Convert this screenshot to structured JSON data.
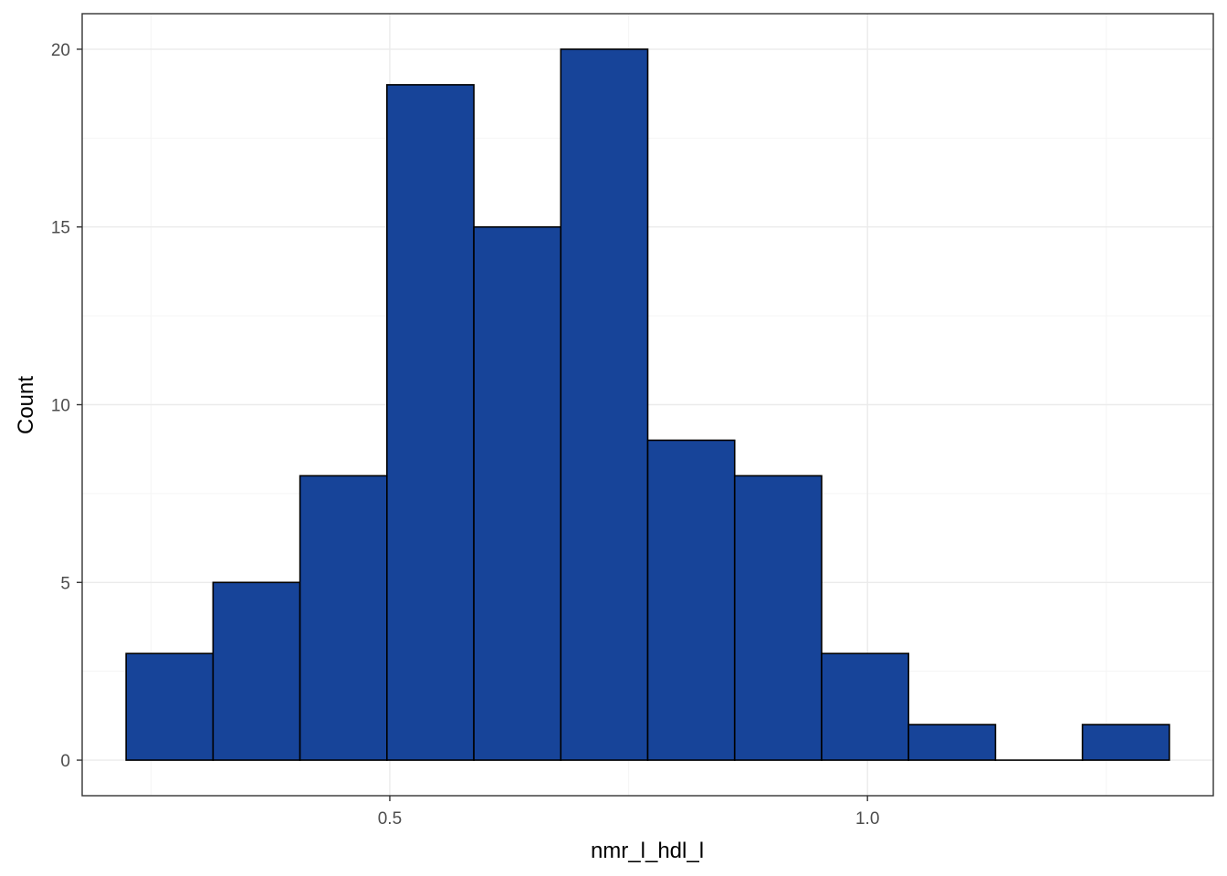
{
  "chart_data": {
    "type": "bar",
    "subtype": "histogram",
    "xlabel": "nmr_l_hdl_l",
    "ylabel": "Count",
    "bin_width": 0.0909,
    "bins": [
      {
        "x_start": 0.224,
        "x_end": 0.315,
        "count": 3
      },
      {
        "x_start": 0.315,
        "x_end": 0.406,
        "count": 5
      },
      {
        "x_start": 0.406,
        "x_end": 0.497,
        "count": 8
      },
      {
        "x_start": 0.497,
        "x_end": 0.588,
        "count": 19
      },
      {
        "x_start": 0.588,
        "x_end": 0.679,
        "count": 15
      },
      {
        "x_start": 0.679,
        "x_end": 0.77,
        "count": 20
      },
      {
        "x_start": 0.77,
        "x_end": 0.861,
        "count": 9
      },
      {
        "x_start": 0.861,
        "x_end": 0.952,
        "count": 8
      },
      {
        "x_start": 0.952,
        "x_end": 1.043,
        "count": 3
      },
      {
        "x_start": 1.043,
        "x_end": 1.134,
        "count": 1
      },
      {
        "x_start": 1.134,
        "x_end": 1.225,
        "count": 0
      },
      {
        "x_start": 1.225,
        "x_end": 1.316,
        "count": 1
      }
    ],
    "xlim": [
      0.178,
      1.362
    ],
    "ylim": [
      -1,
      21
    ],
    "x_ticks": [
      0.5,
      1.0
    ],
    "x_tick_labels": [
      "0.5",
      "1.0"
    ],
    "x_minor_gridlines": [
      0.25,
      0.75,
      1.25
    ],
    "y_ticks": [
      0,
      5,
      10,
      15,
      20
    ],
    "y_tick_labels": [
      "0",
      "5",
      "10",
      "15",
      "20"
    ],
    "grid": true,
    "legend": "none",
    "colors": {
      "bar_fill": "#174499",
      "bar_stroke": "#000000",
      "grid_major": "#ebebeb",
      "grid_minor": "#f5f5f5",
      "panel_border": "#333333",
      "tick_label": "#4d4d4d"
    }
  }
}
